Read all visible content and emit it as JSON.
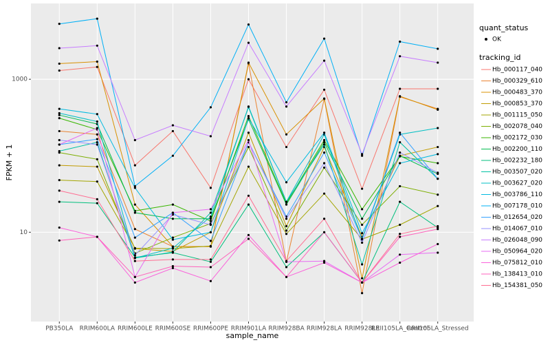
{
  "chart_data": {
    "type": "line",
    "x_label": "sample_name",
    "y_label": "FPKM + 1",
    "categories": [
      "PB350LA",
      "RRIM600LA",
      "RRIM600LE",
      "RRIM600SE",
      "RRIM600PE",
      "RRIM901LA",
      "RRIM928BA",
      "RRIM928LA",
      "RRIM928LE",
      "RRII105LA_Control",
      "RRII105LA_Stressed"
    ],
    "log_y": true,
    "grid": true,
    "ylim": [
      0.68,
      9800
    ],
    "yticks": [
      10,
      1000
    ],
    "status_legend_title": "quant_status",
    "status_legend_entry": "OK",
    "legend_title": "tracking_id",
    "series": [
      {
        "name": "Hb_000117_040",
        "color": "#F8766D",
        "values": [
          1300,
          1450,
          75,
          210,
          38,
          1000,
          130,
          730,
          37,
          750,
          750
        ]
      },
      {
        "name": "Hb_000329_610",
        "color": "#EA8331",
        "values": [
          210,
          190,
          11,
          6.5,
          6.5,
          1600,
          4.1,
          550,
          1.6,
          590,
          410
        ]
      },
      {
        "name": "Hb_000483_370",
        "color": "#D89000",
        "values": [
          1600,
          1700,
          23,
          6.5,
          6.5,
          1650,
          190,
          560,
          2.5,
          600,
          400
        ]
      },
      {
        "name": "Hb_000853_370",
        "color": "#C09B00",
        "values": [
          75,
          72,
          6.1,
          5.6,
          10,
          200,
          12,
          130,
          8.7,
          100,
          130
        ]
      },
      {
        "name": "Hb_001115_050",
        "color": "#A3A500",
        "values": [
          48,
          46,
          6.2,
          6.1,
          6.6,
          72,
          9.5,
          32,
          8.1,
          12.5,
          22
        ]
      },
      {
        "name": "Hb_002078_040",
        "color": "#7CAE00",
        "values": [
          110,
          90,
          5.3,
          8.5,
          13,
          130,
          10.5,
          70,
          12.5,
          40,
          31
        ]
      },
      {
        "name": "Hb_002172_030",
        "color": "#39B600",
        "values": [
          310,
          220,
          19,
          23,
          14,
          330,
          24,
          160,
          20,
          98,
          80
        ]
      },
      {
        "name": "Hb_002200_110",
        "color": "#00BB4E",
        "values": [
          340,
          260,
          18,
          15,
          15,
          300,
          23,
          150,
          15,
          100,
          58
        ]
      },
      {
        "name": "Hb_002232_180",
        "color": "#00BF7D",
        "values": [
          25,
          24,
          4.7,
          5.4,
          4.1,
          23,
          3.5,
          10,
          2.2,
          25,
          11.5
        ]
      },
      {
        "name": "Hb_003507_020",
        "color": "#00C1A3",
        "values": [
          115,
          150,
          4.6,
          5.5,
          18,
          430,
          25,
          140,
          3.8,
          150,
          50
        ]
      },
      {
        "name": "Hb_003627_020",
        "color": "#00BFC4",
        "values": [
          360,
          280,
          4.6,
          6.2,
          16,
          440,
          25,
          190,
          8.0,
          190,
          230
        ]
      },
      {
        "name": "Hb_003786_110",
        "color": "#00BAE0",
        "values": [
          410,
          350,
          38,
          8.0,
          10,
          310,
          45,
          200,
          9.7,
          80,
          105
        ]
      },
      {
        "name": "Hb_007178_010",
        "color": "#00B0F6",
        "values": [
          5300,
          6200,
          40,
          100,
          430,
          5200,
          500,
          3400,
          100,
          3100,
          2500
        ]
      },
      {
        "name": "Hb_012654_020",
        "color": "#35A2FF",
        "values": [
          140,
          165,
          8.5,
          18,
          7.7,
          150,
          16,
          110,
          8.2,
          200,
          50
        ]
      },
      {
        "name": "Hb_014067_010",
        "color": "#9590FF",
        "values": [
          160,
          140,
          5,
          17,
          12.5,
          150,
          15,
          80,
          7.3,
          110,
          60
        ]
      },
      {
        "name": "Hb_026048_090",
        "color": "#C77CFF",
        "values": [
          2550,
          2750,
          160,
          250,
          180,
          3000,
          440,
          1750,
          105,
          2000,
          1650
        ]
      },
      {
        "name": "Hb_050964_020",
        "color": "#E76BF3",
        "values": [
          140,
          230,
          2.6,
          18,
          20,
          160,
          4.1,
          4.2,
          2.2,
          5.1,
          5.4
        ]
      },
      {
        "name": "Hb_075812_010",
        "color": "#FA62DB",
        "values": [
          11.5,
          8.7,
          2.2,
          3.4,
          2.3,
          9.2,
          2.6,
          4.0,
          2.2,
          4.0,
          7.0
        ]
      },
      {
        "name": "Hb_138413_010",
        "color": "#FF62BC",
        "values": [
          7.8,
          8.7,
          2.6,
          3.6,
          3.5,
          8.2,
          2.6,
          10,
          2.2,
          8.7,
          11
        ]
      },
      {
        "name": "Hb_154381_050",
        "color": "#FF6C91",
        "values": [
          35,
          27,
          4.2,
          4.4,
          4.4,
          30,
          4.2,
          15,
          2.2,
          9.5,
          12
        ]
      }
    ]
  }
}
